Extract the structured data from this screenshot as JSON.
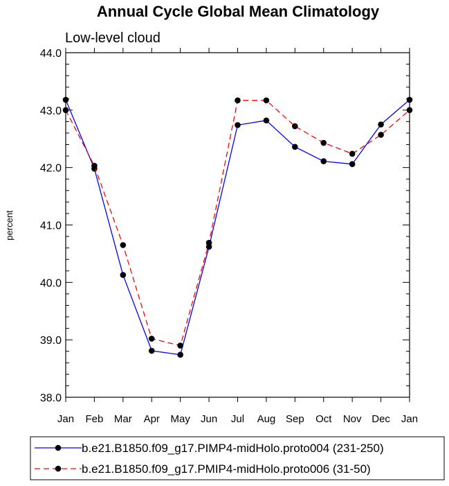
{
  "chart_data": {
    "type": "line",
    "title": "Annual Cycle Global Mean Climatology",
    "subtitle": "Low-level cloud",
    "xlabel": "",
    "ylabel": "percent",
    "categories": [
      "Jan",
      "Feb",
      "Mar",
      "Apr",
      "May",
      "Jun",
      "Jul",
      "Aug",
      "Sep",
      "Oct",
      "Nov",
      "Dec",
      "Jan"
    ],
    "ylim": [
      38.0,
      44.0
    ],
    "yticks": [
      "38.0",
      "39.0",
      "40.0",
      "41.0",
      "42.0",
      "43.0",
      "44.0"
    ],
    "grid": false,
    "legend_position": "bottom",
    "series": [
      {
        "name": "b.e21.B1850.f09_g17.PIMP4-midHolo.proto004 (231-250)",
        "color": "#0000ff",
        "dash": "solid",
        "values": [
          43.18,
          41.98,
          40.13,
          38.81,
          38.74,
          40.62,
          42.74,
          42.82,
          42.36,
          42.11,
          42.06,
          42.75,
          43.18
        ]
      },
      {
        "name": "b.e21.B1850.f09_g17.PMIP4-midHolo.proto006 (31-50)",
        "color": "#ff0000",
        "dash": "dashed",
        "values": [
          43.0,
          42.03,
          40.65,
          39.02,
          38.9,
          40.69,
          43.17,
          43.17,
          42.72,
          42.43,
          42.24,
          42.57,
          43.0
        ]
      }
    ]
  }
}
